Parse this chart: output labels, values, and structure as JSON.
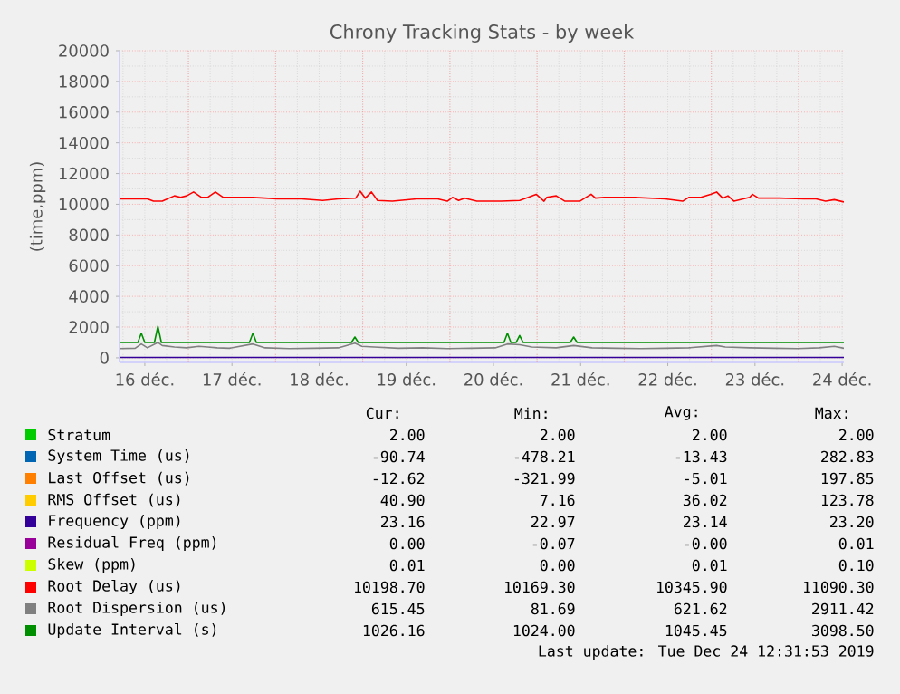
{
  "chart_data": {
    "type": "line",
    "title": "Chrony Tracking Stats - by week",
    "ylabel": "(time,ppm)",
    "xlim": [
      16.21,
      24.52
    ],
    "ylim": [
      -300,
      20000
    ],
    "xticks": [
      {
        "value": 16.5,
        "label": "16 déc."
      },
      {
        "value": 17.5,
        "label": "17 déc."
      },
      {
        "value": 18.5,
        "label": "18 déc."
      },
      {
        "value": 19.5,
        "label": "19 déc."
      },
      {
        "value": 20.5,
        "label": "20 déc."
      },
      {
        "value": 21.5,
        "label": "21 déc."
      },
      {
        "value": 22.5,
        "label": "22 déc."
      },
      {
        "value": 23.5,
        "label": "23 déc."
      },
      {
        "value": 24.5,
        "label": "24 déc."
      }
    ],
    "yticks": [
      0,
      2000,
      4000,
      6000,
      8000,
      10000,
      12000,
      14000,
      16000,
      18000,
      20000
    ],
    "grid": true,
    "legend": "bottom",
    "marker": "none",
    "line_style": "solid",
    "series": [
      {
        "name": "Stratum",
        "color": "#00cc00",
        "values": [
          null
        ]
      },
      {
        "name": "System Time (us)",
        "color": "#0066b3",
        "values": [
          null
        ]
      },
      {
        "name": "Last Offset (us)",
        "color": "#ff8000",
        "values": [
          null
        ]
      },
      {
        "name": "RMS Offset (us)",
        "color": "#ffcc00",
        "values": [
          null
        ]
      },
      {
        "name": "Frequency (ppm)",
        "color": "#330099",
        "x": [
          16.21,
          24.52
        ],
        "values": [
          23,
          23
        ]
      },
      {
        "name": "Residual Freq (ppm)",
        "color": "#990099",
        "values": [
          null
        ]
      },
      {
        "name": "Skew (ppm)",
        "color": "#ccff00",
        "values": [
          null
        ]
      },
      {
        "name": "Root Delay (us)",
        "color": "#ff0000",
        "x": [
          16.21,
          16.39,
          16.53,
          16.6,
          16.7,
          16.84,
          16.91,
          16.98,
          17.06,
          17.15,
          17.22,
          17.31,
          17.4,
          17.5,
          17.74,
          17.88,
          18.02,
          18.3,
          18.54,
          18.72,
          18.92,
          18.97,
          19.03,
          19.1,
          19.17,
          19.34,
          19.62,
          19.86,
          19.97,
          20.03,
          20.1,
          20.17,
          20.31,
          20.59,
          20.8,
          20.9,
          20.99,
          21.08,
          21.11,
          21.22,
          21.32,
          21.49,
          21.56,
          21.62,
          21.67,
          21.77,
          22.12,
          22.47,
          22.67,
          22.74,
          22.88,
          22.99,
          23.06,
          23.13,
          23.19,
          23.26,
          23.44,
          23.47,
          23.54,
          23.78,
          24.06,
          24.2,
          24.31,
          24.41,
          24.52
        ],
        "values": [
          10350,
          10350,
          10350,
          10200,
          10200,
          10550,
          10450,
          10550,
          10800,
          10450,
          10450,
          10800,
          10450,
          10450,
          10450,
          10400,
          10350,
          10350,
          10250,
          10350,
          10400,
          10850,
          10400,
          10800,
          10250,
          10200,
          10350,
          10350,
          10200,
          10450,
          10250,
          10400,
          10200,
          10200,
          10250,
          10450,
          10650,
          10200,
          10450,
          10550,
          10200,
          10200,
          10450,
          10650,
          10400,
          10450,
          10450,
          10350,
          10200,
          10450,
          10450,
          10650,
          10800,
          10400,
          10550,
          10200,
          10450,
          10650,
          10400,
          10400,
          10350,
          10350,
          10200,
          10300,
          10150
        ]
      },
      {
        "name": "Root Dispersion (us)",
        "color": "#808080",
        "x": [
          16.21,
          16.39,
          16.46,
          16.53,
          16.65,
          16.7,
          16.84,
          16.98,
          17.12,
          17.22,
          17.33,
          17.47,
          17.74,
          17.88,
          18.16,
          18.44,
          18.72,
          18.91,
          18.99,
          19.13,
          19.41,
          19.69,
          19.97,
          20.24,
          20.52,
          20.66,
          20.8,
          20.94,
          21.22,
          21.42,
          21.63,
          21.91,
          22.19,
          22.47,
          22.74,
          23.06,
          23.16,
          23.44,
          23.72,
          23.99,
          24.24,
          24.41,
          24.52
        ],
        "values": [
          600,
          620,
          900,
          650,
          1000,
          800,
          700,
          650,
          750,
          700,
          650,
          620,
          900,
          650,
          600,
          620,
          650,
          950,
          750,
          700,
          620,
          650,
          600,
          620,
          650,
          900,
          850,
          700,
          650,
          800,
          650,
          620,
          600,
          620,
          650,
          800,
          700,
          650,
          620,
          600,
          650,
          750,
          620
        ]
      },
      {
        "name": "Update Interval (s)",
        "color": "#008f00",
        "x": [
          16.21,
          16.42,
          16.46,
          16.5,
          16.61,
          16.65,
          16.69,
          17.7,
          17.74,
          17.78,
          18.87,
          18.91,
          18.95,
          20.62,
          20.66,
          20.7,
          20.76,
          20.8,
          20.84,
          21.38,
          21.42,
          21.46,
          24.52
        ],
        "values": [
          1000,
          1000,
          1600,
          1000,
          1000,
          2050,
          1000,
          1000,
          1600,
          1000,
          1000,
          1350,
          1000,
          1000,
          1600,
          1000,
          1000,
          1450,
          1000,
          1000,
          1350,
          1000,
          1000
        ]
      }
    ],
    "annotations": [
      "Cur:",
      "Min:",
      "Avg:",
      "Max:",
      "2.00",
      "2.00",
      "2.00",
      "2.00",
      "-90.74",
      "-478.21",
      "-13.43",
      "282.83",
      "-12.62",
      "-321.99",
      "-5.01",
      "197.85",
      "40.90",
      "7.16",
      "36.02",
      "123.78",
      "23.16",
      "22.97",
      "23.14",
      "23.20",
      "0.00",
      "-0.07",
      "-0.00",
      "0.01",
      "0.01",
      "0.00",
      "0.01",
      "0.10",
      "10198.70",
      "10169.30",
      "10345.90",
      "11090.30",
      "615.45",
      "81.69",
      "621.62",
      "2911.42",
      "1026.16",
      "1024.00",
      "1045.45",
      "3098.50",
      "Last update: Tue Dec 24 12:31:53 2019"
    ]
  }
}
